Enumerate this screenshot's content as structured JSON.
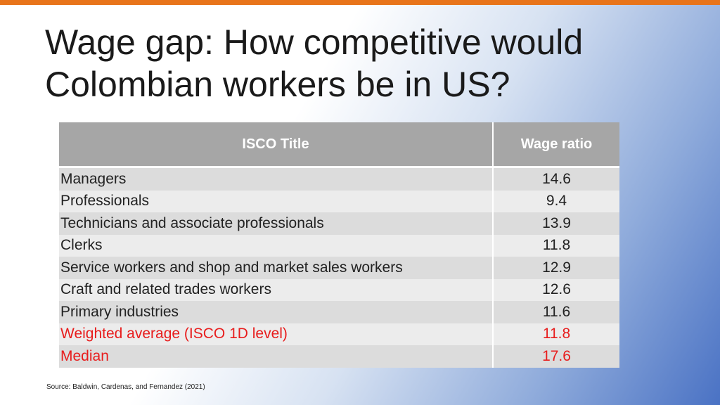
{
  "slide": {
    "title_line1": "Wage gap: How competitive would",
    "title_line2": "Colombian workers be in US?",
    "source": "Source: Baldwin, Cardenas, and Fernandez (2021)"
  },
  "table": {
    "headers": [
      "ISCO Title",
      "Wage ratio"
    ],
    "rows": [
      {
        "title": "Managers",
        "ratio": "14.6"
      },
      {
        "title": "Professionals",
        "ratio": "9.4"
      },
      {
        "title": "Technicians and associate professionals",
        "ratio": "13.9"
      },
      {
        "title": "Clerks",
        "ratio": "11.8"
      },
      {
        "title": "Service workers and shop and market sales workers",
        "ratio": "12.9"
      },
      {
        "title": "Craft and related trades workers",
        "ratio": "12.6"
      },
      {
        "title": "Primary industries",
        "ratio": "11.6"
      },
      {
        "title": "Weighted average (ISCO 1D level)",
        "ratio": "11.8"
      },
      {
        "title": "Median",
        "ratio": "17.6"
      }
    ]
  },
  "colors": {
    "accent_bar": "#e8741a",
    "header_bg": "#a6a6a6",
    "highlight_text": "#e81c1c"
  }
}
